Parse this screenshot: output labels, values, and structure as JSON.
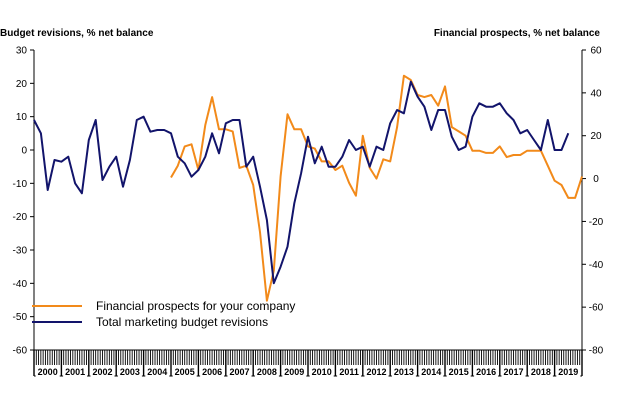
{
  "chart_data": {
    "type": "line",
    "title": "",
    "xlabel": "",
    "ylabel_left": "Budget revisions, % net balance",
    "ylabel_right": "Financial prospects, % net balance",
    "ylim_left": [
      -60,
      30
    ],
    "ylim_right": [
      -80,
      60
    ],
    "left_ticks": [
      30,
      20,
      10,
      0,
      -10,
      -20,
      -30,
      -40,
      -50,
      -60
    ],
    "right_ticks": [
      60,
      40,
      20,
      0,
      -20,
      -40,
      -60,
      -80
    ],
    "x_range": [
      2000,
      2020
    ],
    "years": [
      "2000",
      "2001",
      "2002",
      "2003",
      "2004",
      "2005",
      "2006",
      "2007",
      "2008",
      "2009",
      "2010",
      "2011",
      "2012",
      "2013",
      "2014",
      "2015",
      "2016",
      "2017",
      "2018",
      "2019"
    ],
    "legend_position": "bottom-left",
    "series": [
      {
        "name": "Financial prospects for your company",
        "color": "#f28a1a",
        "axis": "right",
        "start": 2005.0,
        "step": 0.25,
        "values": [
          0.5,
          6,
          15,
          16,
          4,
          25,
          38,
          23,
          23,
          22,
          5,
          6,
          -3,
          -25,
          -57,
          -43,
          1,
          30,
          23,
          23,
          15,
          14,
          8,
          8,
          4,
          6,
          -2,
          -8,
          20,
          5,
          0,
          9,
          8,
          24,
          48,
          46,
          39,
          38,
          39,
          34,
          43,
          24,
          22,
          20,
          13,
          13,
          12,
          12,
          15,
          10,
          11,
          11,
          13,
          13,
          13,
          6,
          -1,
          -3,
          -9,
          -9,
          1
        ]
      },
      {
        "name": "Total marketing budget revisions",
        "color": "#12146b",
        "axis": "left",
        "start": 2000.0,
        "step": 0.25,
        "values": [
          9,
          5,
          -12,
          -3,
          -3.5,
          -2,
          -10,
          -13,
          3,
          9,
          -9,
          -5,
          -2,
          -11,
          -3,
          9,
          10,
          5.5,
          6,
          6,
          5,
          -2,
          -4,
          -8,
          -6,
          -2,
          5,
          -1,
          8,
          9,
          9,
          -5,
          -2,
          -11,
          -21,
          -40,
          -35,
          -29,
          -16,
          -7,
          4,
          -4,
          1,
          -5,
          -5,
          -2,
          3,
          0,
          1,
          -5,
          1,
          0,
          8,
          12,
          11,
          20.5,
          16,
          13,
          6,
          12,
          12,
          4,
          0,
          1,
          10,
          14,
          13,
          13,
          14,
          11,
          9,
          5,
          6,
          3,
          0,
          9,
          0,
          0,
          5
        ]
      }
    ]
  }
}
